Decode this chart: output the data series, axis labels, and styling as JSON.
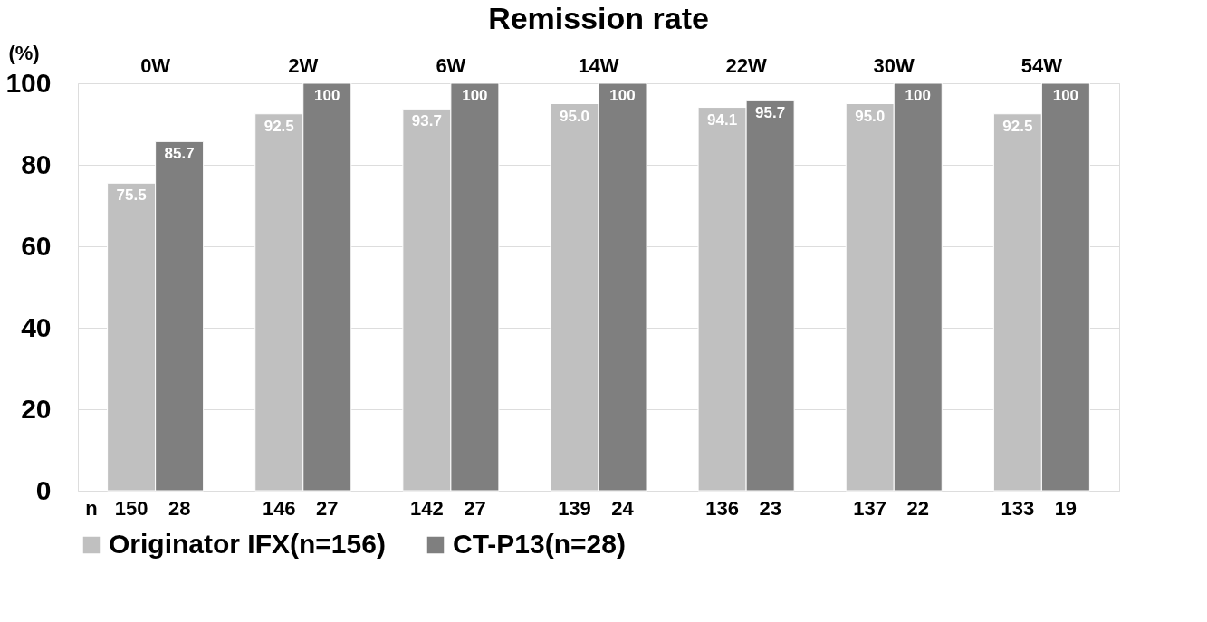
{
  "chart_data": {
    "type": "bar",
    "title": "Remission rate",
    "ylabel": "(%)",
    "categories": [
      "0W",
      "2W",
      "6W",
      "14W",
      "22W",
      "30W",
      "54W"
    ],
    "series": [
      {
        "name": "Originator IFX(n=156)",
        "color": "#c0c0c0",
        "values": [
          75.5,
          92.5,
          93.7,
          95.0,
          94.1,
          95.0,
          92.5
        ],
        "value_labels": [
          "75.5",
          "92.5",
          "93.7",
          "95.0",
          "94.1",
          "95.0",
          "92.5"
        ]
      },
      {
        "name": "CT-P13(n=28)",
        "color": "#7f7f7f",
        "values": [
          85.7,
          100,
          100,
          100,
          95.7,
          100,
          100
        ],
        "value_labels": [
          "85.7",
          "100",
          "100",
          "100",
          "95.7",
          "100",
          "100"
        ]
      }
    ],
    "ylim": [
      0,
      100
    ],
    "yticks": [
      0,
      20,
      40,
      60,
      80,
      100
    ],
    "grid": "y",
    "legend": "bottom",
    "annotations": [
      "n",
      "150",
      "28",
      "146",
      "27",
      "142",
      "27",
      "139",
      "24",
      "136",
      "23",
      "137",
      "22",
      "133",
      "19"
    ]
  }
}
